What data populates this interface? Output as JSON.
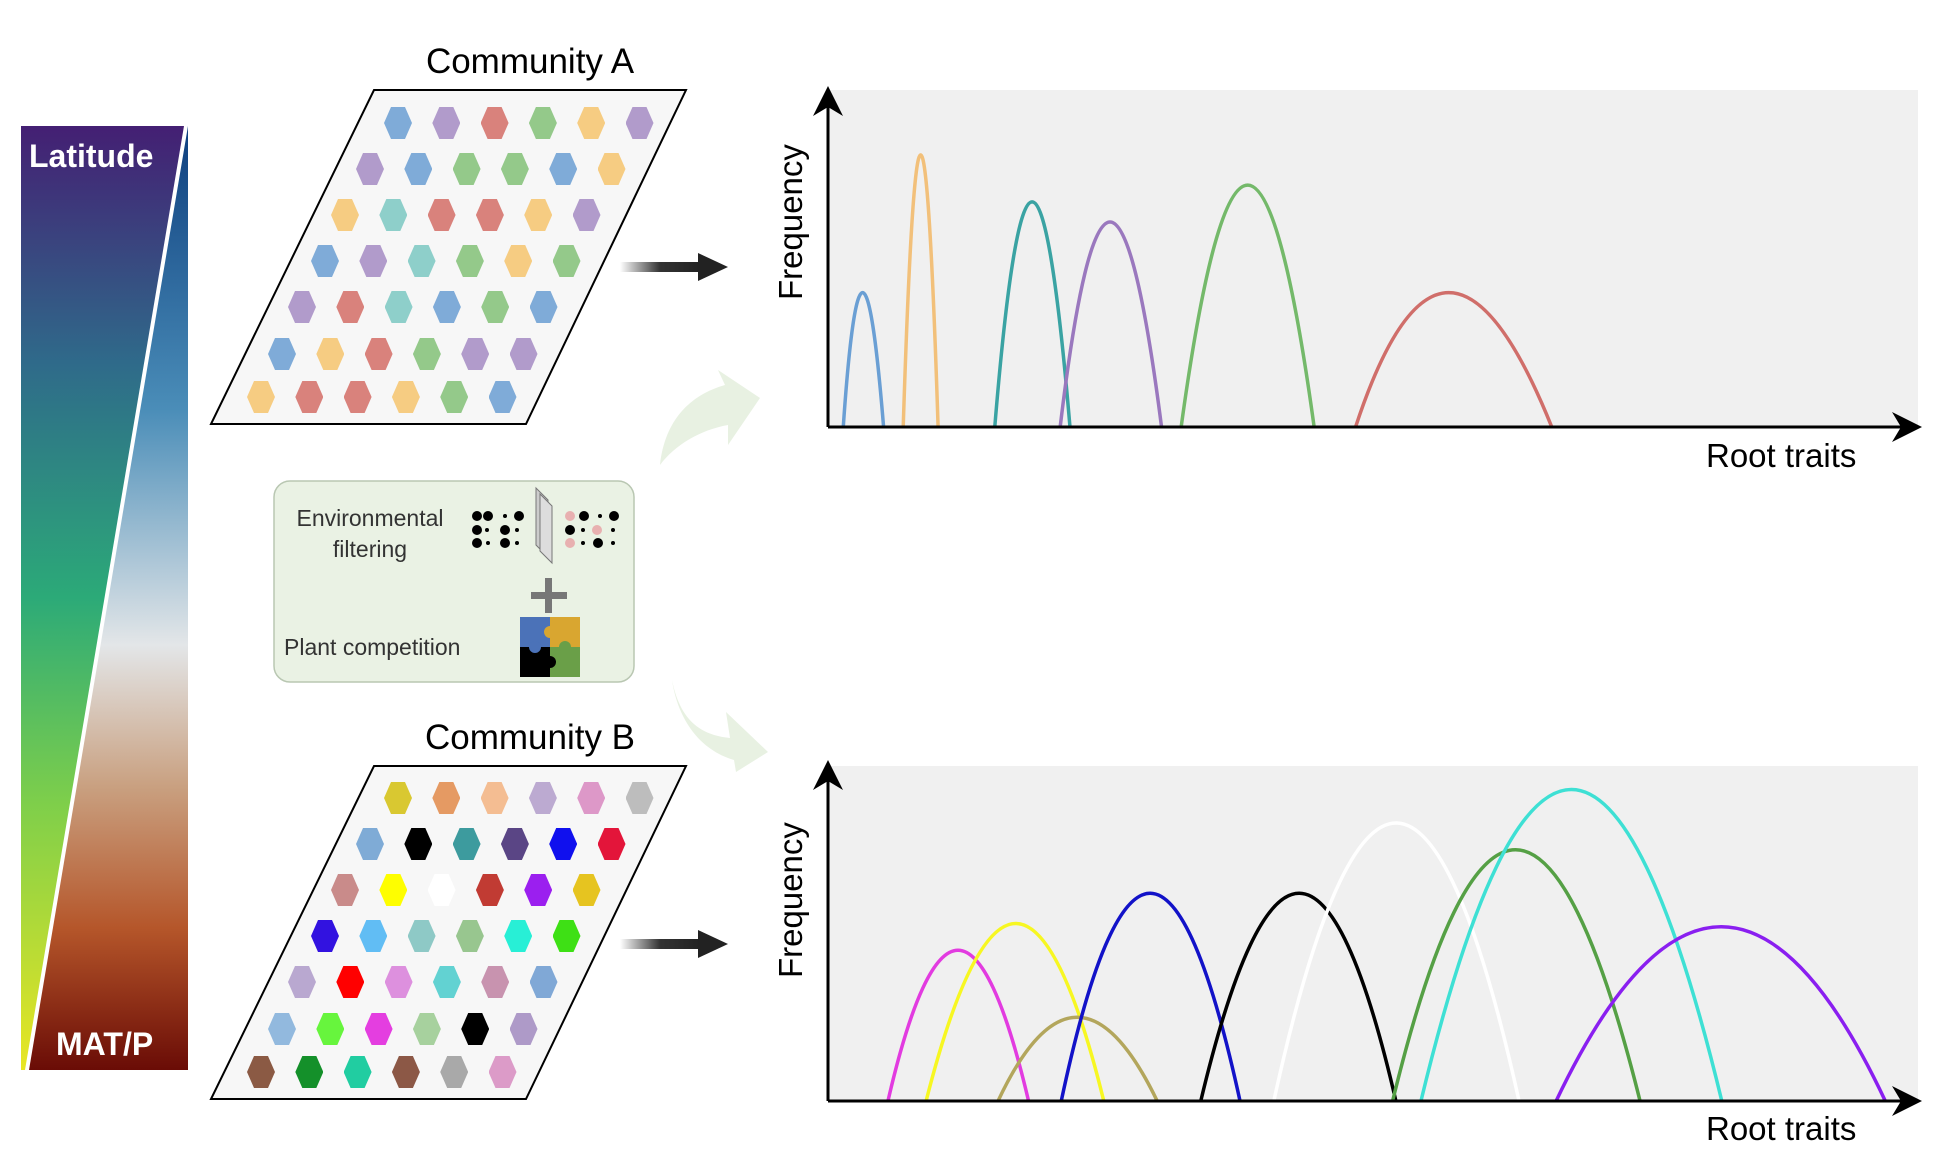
{
  "gradient": {
    "top_label": "Latitude",
    "bottom_label": "MAT/P"
  },
  "community_a": {
    "title": "Community A",
    "hex_colors": [
      [
        "#7fabd8",
        "#b19bcb",
        "#d9827c",
        "#94c98a",
        "#f6cc82",
        "#b19bcb"
      ],
      [
        "#b19bcb",
        "#7fabd8",
        "#94c98a",
        "#94c98a",
        "#7fabd8",
        "#f6cc82"
      ],
      [
        "#f6cc82",
        "#8ecfca",
        "#d9827c",
        "#d9827c",
        "#f6cc82",
        "#b19bcb"
      ],
      [
        "#7fabd8",
        "#b19bcb",
        "#8ecfca",
        "#94c98a",
        "#f6cc82",
        "#94c98a"
      ],
      [
        "#b19bcb",
        "#d9827c",
        "#8ecfca",
        "#7fabd8",
        "#94c98a",
        "#7fabd8"
      ],
      [
        "#7fabd8",
        "#f6cc82",
        "#d9827c",
        "#94c98a",
        "#b19bcb",
        "#b19bcb"
      ],
      [
        "#f6cc82",
        "#d9827c",
        "#d9827c",
        "#f6cc82",
        "#94c98a",
        "#7fabd8"
      ]
    ]
  },
  "community_b": {
    "title": "Community B",
    "hex_colors": [
      [
        "#d9c831",
        "#e59a63",
        "#f4bd92",
        "#bcaad1",
        "#dd98c8",
        "#bdbdbd"
      ],
      [
        "#7fabd6",
        "#000000",
        "#3d9b9e",
        "#5a4585",
        "#1010ee",
        "#e3153a"
      ],
      [
        "#c98b8a",
        "#fefe00",
        "#ffffff",
        "#c13b33",
        "#9b1fef",
        "#e6c420"
      ],
      [
        "#3212e0",
        "#61bdf4",
        "#8ec9c6",
        "#98c68f",
        "#28efd6",
        "#3ee015"
      ],
      [
        "#b9a8d0",
        "#ff0000",
        "#dd90de",
        "#62d2d2",
        "#c893af",
        "#80a8d6"
      ],
      [
        "#92b9de",
        "#67f53d",
        "#e43ee0",
        "#a7d19e",
        "#000000",
        "#ae9ac8"
      ],
      [
        "#8b5a44",
        "#14902a",
        "#21cda1",
        "#8c5846",
        "#a9a9a9",
        "#dc9bc8"
      ]
    ]
  },
  "mechanisms": {
    "env_filtering": "Environmental filtering",
    "competition": "Plant competition",
    "plus": "+"
  },
  "chart_data": [
    {
      "type": "line",
      "title": "Community A",
      "xlabel": "Root traits",
      "ylabel": "Frequency",
      "xlim": [
        0,
        10
      ],
      "ylim": [
        0,
        1
      ],
      "grid": false,
      "series": [
        {
          "name": "blue",
          "color": "#6a9fd4",
          "start": 0.14,
          "peak_x": 0.31,
          "end": 0.51,
          "peak": 0.4
        },
        {
          "name": "orange",
          "color": "#f2c07a",
          "start": 0.69,
          "peak_x": 0.85,
          "end": 1.01,
          "peak": 0.81
        },
        {
          "name": "teal",
          "color": "#3aa3a3",
          "start": 1.53,
          "peak_x": 1.87,
          "end": 2.22,
          "peak": 0.67
        },
        {
          "name": "purple",
          "color": "#9a78be",
          "start": 2.13,
          "peak_x": 2.58,
          "end": 3.06,
          "peak": 0.61
        },
        {
          "name": "green",
          "color": "#74b96a",
          "start": 3.24,
          "peak_x": 3.85,
          "end": 4.46,
          "peak": 0.72
        },
        {
          "name": "red",
          "color": "#d06e6a",
          "start": 4.84,
          "peak_x": 5.65,
          "end": 6.64,
          "peak": 0.4
        }
      ]
    },
    {
      "type": "line",
      "title": "Community B",
      "xlabel": "Root traits",
      "ylabel": "Frequency",
      "xlim": [
        0,
        10
      ],
      "ylim": [
        0,
        1
      ],
      "grid": false,
      "series": [
        {
          "name": "magenta",
          "color": "#e23be0",
          "start": 0.55,
          "peak_x": 1.19,
          "end": 1.84,
          "peak": 0.45
        },
        {
          "name": "yellow",
          "color": "#f7f722",
          "start": 0.9,
          "peak_x": 1.73,
          "end": 2.53,
          "peak": 0.53
        },
        {
          "name": "olive",
          "color": "#b3a65c",
          "start": 1.56,
          "peak_x": 2.28,
          "end": 3.02,
          "peak": 0.25
        },
        {
          "name": "blue",
          "color": "#1212c8",
          "start": 2.14,
          "peak_x": 2.95,
          "end": 3.78,
          "peak": 0.62
        },
        {
          "name": "black",
          "color": "#000000",
          "start": 3.42,
          "peak_x": 4.33,
          "end": 5.21,
          "peak": 0.62
        },
        {
          "name": "white",
          "color": "#ffffff",
          "start": 4.09,
          "peak_x": 5.21,
          "end": 6.34,
          "peak": 0.83
        },
        {
          "name": "green",
          "color": "#55a045",
          "start": 5.18,
          "peak_x": 6.3,
          "end": 7.45,
          "peak": 0.75
        },
        {
          "name": "cyan",
          "color": "#3ee0d4",
          "start": 5.44,
          "peak_x": 6.82,
          "end": 8.2,
          "peak": 0.93
        },
        {
          "name": "violet",
          "color": "#8a1ff0",
          "start": 6.68,
          "peak_x": 8.2,
          "end": 9.7,
          "peak": 0.52
        }
      ]
    }
  ]
}
